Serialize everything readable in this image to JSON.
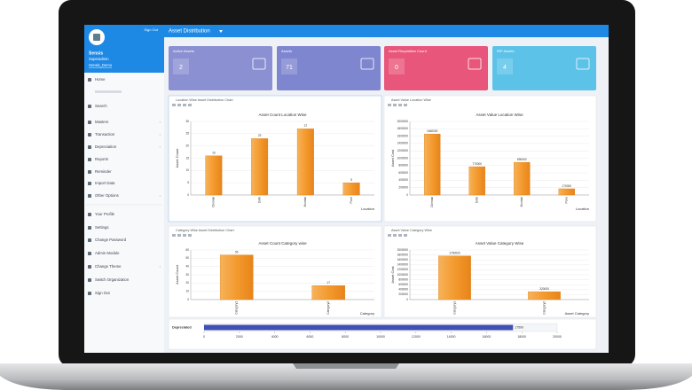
{
  "sidebar": {
    "user": {
      "name": "Sensis",
      "role": "Superadmin",
      "organization": "Sensis_Demo"
    },
    "sign_out_link": "Sign Out",
    "menu": [
      "Home",
      "Search",
      "Masters",
      "Transaction",
      "Depreciation",
      "Reports",
      "Reminder",
      "Import Data",
      "Other Options",
      "Your Profile",
      "Settings",
      "Change Password",
      "Admin Module",
      "Change Theme",
      "Switch Organization",
      "Sign Out"
    ]
  },
  "topbar": {
    "title": "Asset Distribution"
  },
  "cards": [
    {
      "label": "Active Assets",
      "value": 2,
      "color": "#8b90d2"
    },
    {
      "label": "Assets",
      "value": 71,
      "color": "#7f86d0"
    },
    {
      "label": "Asset Requisition Count",
      "value": 0,
      "color": "#e9567c"
    },
    {
      "label": "RIP Assets",
      "value": 4,
      "color": "#5cc2e8"
    }
  ],
  "chart_data": [
    {
      "type": "bar",
      "panel_title": "Location Wise Asset Distribution Chart",
      "title": "Asset Count Location Wise",
      "y_label": "Asset Count",
      "x_label": "Location",
      "categories": [
        "Chennai",
        "Delhi",
        "Mumbai",
        "Pune"
      ],
      "values": [
        16,
        23,
        27,
        5
      ],
      "ylim": [
        0,
        30
      ],
      "yticks": [
        0,
        5,
        10,
        15,
        20,
        25,
        30
      ],
      "color": "#f39a2e",
      "grid": true
    },
    {
      "type": "bar",
      "panel_title": "Asset Value Location Wise",
      "title": "Asset Value Location Wise",
      "y_label": "Asset Cost",
      "x_label": "Location",
      "categories": [
        "Chennai",
        "Delhi",
        "Mumbai",
        "Pune"
      ],
      "values": [
        1660000,
        770000,
        890000,
        170000
      ],
      "ylim": [
        0,
        2000000
      ],
      "yticks": [
        0,
        200000,
        400000,
        600000,
        800000,
        1000000,
        1200000,
        1400000,
        1600000,
        1800000,
        2000000
      ],
      "color": "#f39a2e",
      "grid": true
    },
    {
      "type": "bar",
      "panel_title": "Category Wise Asset Distribution Chart",
      "title": "Asset Count Category wise",
      "y_label": "Asset Count",
      "x_label": "Category",
      "categories": [
        "Category1",
        "Category2"
      ],
      "values": [
        54,
        17
      ],
      "ylim": [
        0,
        60
      ],
      "yticks": [
        0,
        10,
        20,
        30,
        40,
        50,
        60
      ],
      "color": "#f39a2e",
      "grid": true
    },
    {
      "type": "bar",
      "panel_title": "Asset Value Category Wise",
      "title": "Asset Value Category Wise",
      "y_label": "Asset Cost",
      "x_label": "Asset Category",
      "categories": [
        "Category1",
        "Category2"
      ],
      "values": [
        1760000,
        320000
      ],
      "ylim": [
        0,
        2000000
      ],
      "yticks": [
        0,
        200000,
        400000,
        600000,
        800000,
        1000000,
        1200000,
        1400000,
        1600000,
        1800000,
        2000000
      ],
      "color": "#f39a2e",
      "grid": true
    },
    {
      "type": "bar",
      "orientation": "horizontal",
      "categories": [
        "Depreciated"
      ],
      "values": [
        17500
      ],
      "xlim": [
        0,
        20000
      ],
      "xticks": [
        0,
        2000,
        4000,
        6000,
        8000,
        10000,
        12000,
        14000,
        16000,
        18000,
        20000
      ],
      "color": "#3f51b5",
      "grid": false
    }
  ]
}
